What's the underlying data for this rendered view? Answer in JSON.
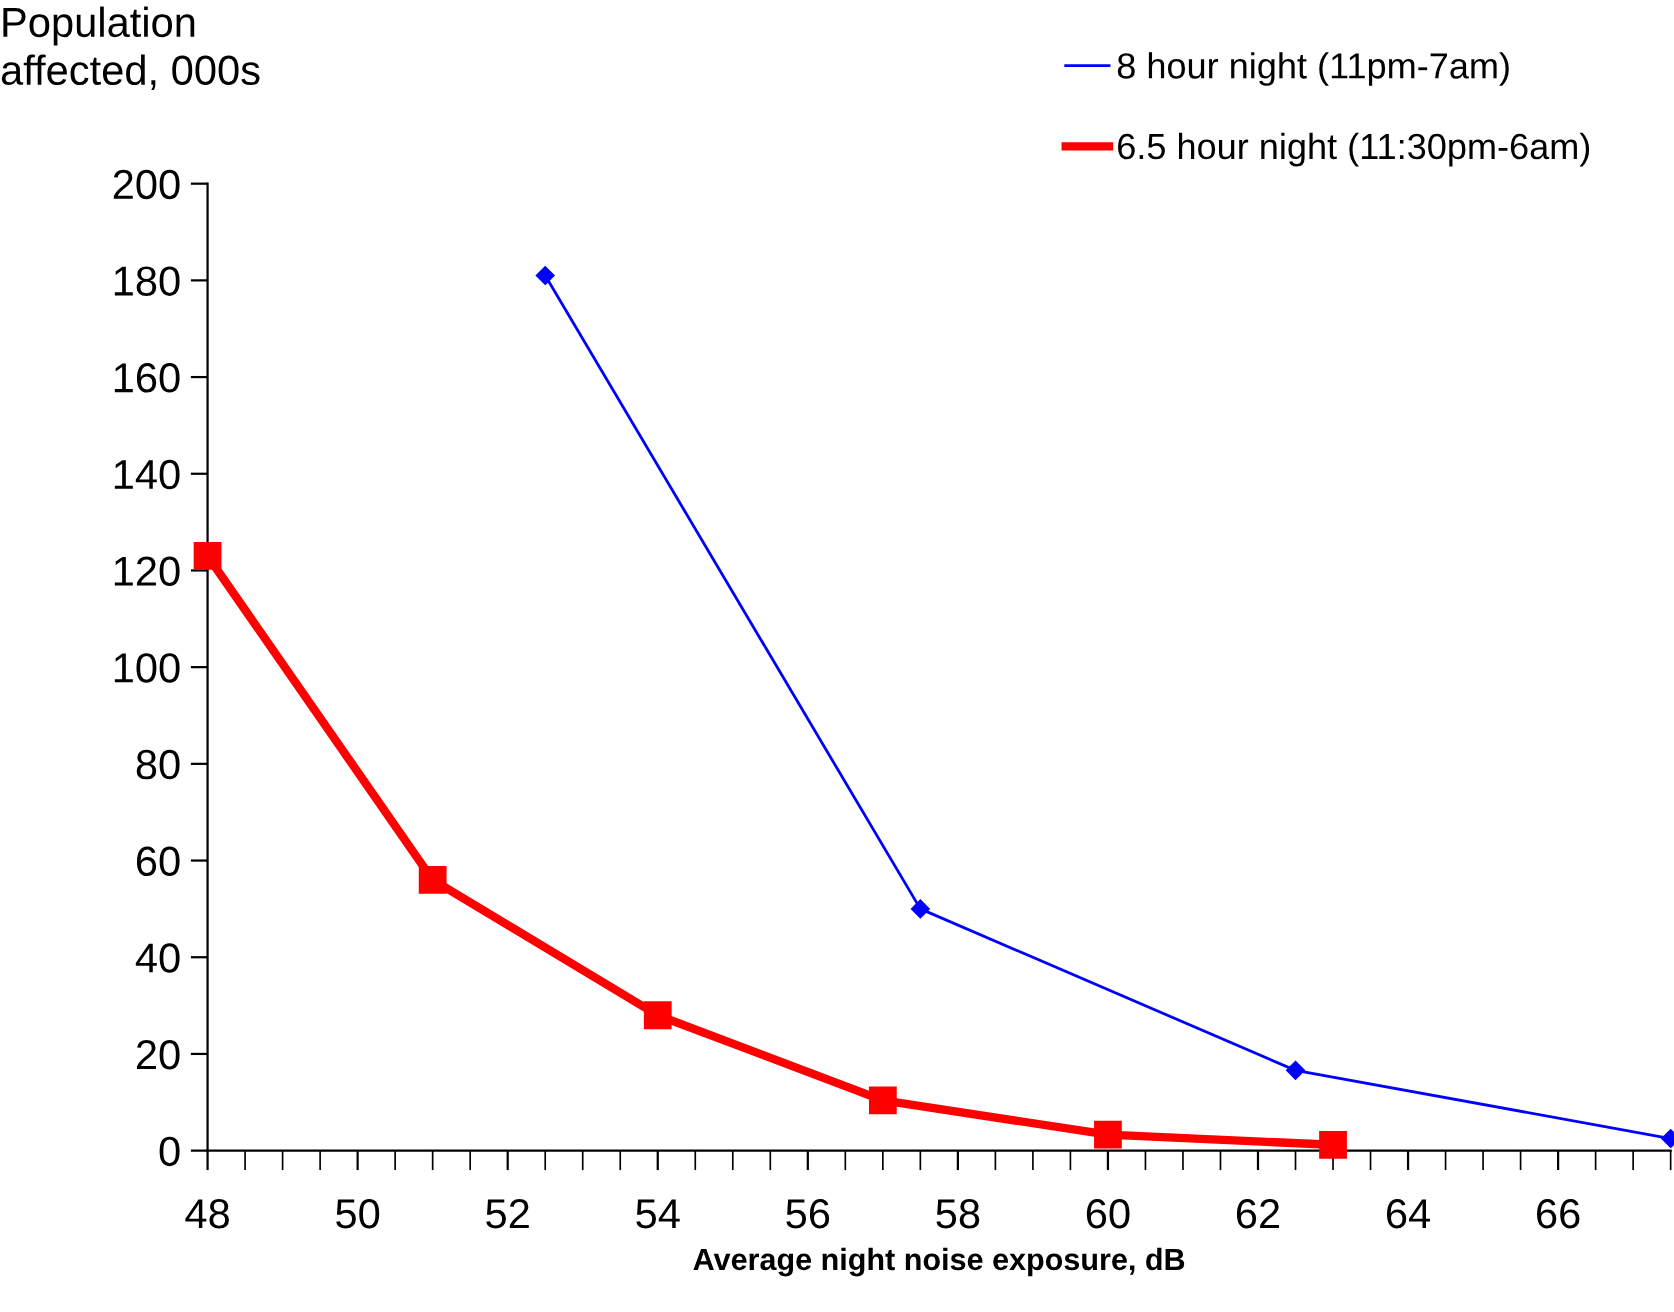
{
  "chart_data": {
    "type": "line",
    "ylabel": "Population\naffected, 000s",
    "xlabel": "Average night noise exposure, dB",
    "xlim": [
      48,
      67.5
    ],
    "xticks": [
      48,
      50,
      52,
      54,
      56,
      58,
      60,
      62,
      64,
      66
    ],
    "ylim": [
      0,
      200
    ],
    "yticks": [
      0,
      20,
      40,
      60,
      80,
      100,
      120,
      140,
      160,
      180,
      200
    ],
    "grid": false,
    "legend": "top right",
    "series": [
      {
        "name": "8 hour night (11pm-7am)",
        "color": "#0000ff",
        "marker": "diamond",
        "line_style": "solid",
        "x": [
          52.5,
          57.5,
          62.5,
          67.5
        ],
        "values": [
          181,
          50,
          16.6,
          2.5
        ]
      },
      {
        "name": "6.5 hour night (11:30pm-6am)",
        "color": "#ff0000",
        "marker": "square",
        "line_style": "solid",
        "x": [
          48,
          51,
          54,
          57,
          60,
          63
        ],
        "values": [
          123,
          56,
          28,
          10.4,
          3.3,
          1.2
        ]
      }
    ]
  }
}
